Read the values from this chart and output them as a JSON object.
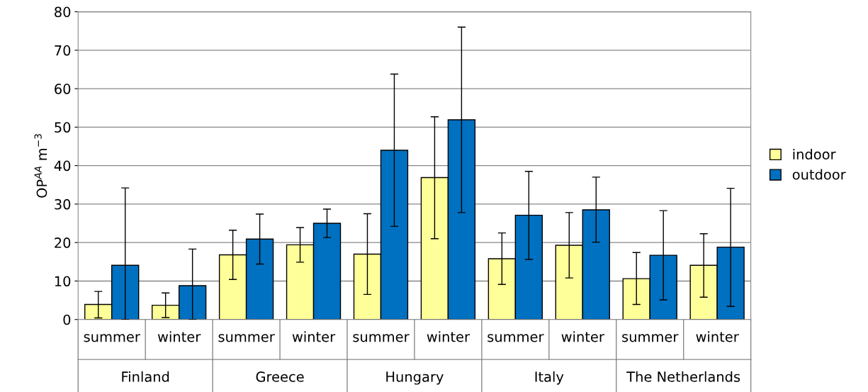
{
  "chart_data": {
    "type": "bar",
    "ylabel": "OP$^{AA}$ m$^{−3}$",
    "categories": [
      "summer",
      "winter",
      "summer",
      "winter",
      "summer",
      "winter",
      "summer",
      "winter",
      "summer",
      "winter"
    ],
    "annotations": [
      "Finland",
      "Greece",
      "Hungary",
      "Italy",
      "The Netherlands"
    ],
    "series": [
      {
        "name": "indoor",
        "color": "#ffff99",
        "values": [
          3.9,
          3.7,
          16.8,
          19.4,
          17.0,
          36.9,
          15.8,
          19.3,
          10.6,
          14.1
        ],
        "errors": [
          [
            0.4,
            7.3
          ],
          [
            0.5,
            6.9
          ],
          [
            10.4,
            23.2
          ],
          [
            14.9,
            23.9
          ],
          [
            6.5,
            27.5
          ],
          [
            21.0,
            52.7
          ],
          [
            9.1,
            22.5
          ],
          [
            10.8,
            27.8
          ],
          [
            3.9,
            17.4
          ],
          [
            5.8,
            22.3
          ]
        ]
      },
      {
        "name": "outdoor",
        "color": "#0070c0",
        "values": [
          14.1,
          8.8,
          20.9,
          25.0,
          44.0,
          51.9,
          27.1,
          28.5,
          16.7,
          18.8
        ],
        "errors": [
          [
            0,
            34.2
          ],
          [
            0,
            18.3
          ],
          [
            14.4,
            27.4
          ],
          [
            21.3,
            28.7
          ],
          [
            24.2,
            63.8
          ],
          [
            27.8,
            76.0
          ],
          [
            15.6,
            38.5
          ],
          [
            20.1,
            37.0
          ],
          [
            5.1,
            28.3
          ],
          [
            3.4,
            34.1
          ]
        ]
      }
    ],
    "ylim": [
      0,
      80
    ],
    "yticks": [
      0,
      10,
      20,
      30,
      40,
      50,
      60,
      70,
      80
    ],
    "grid": "y",
    "legend": "right"
  }
}
